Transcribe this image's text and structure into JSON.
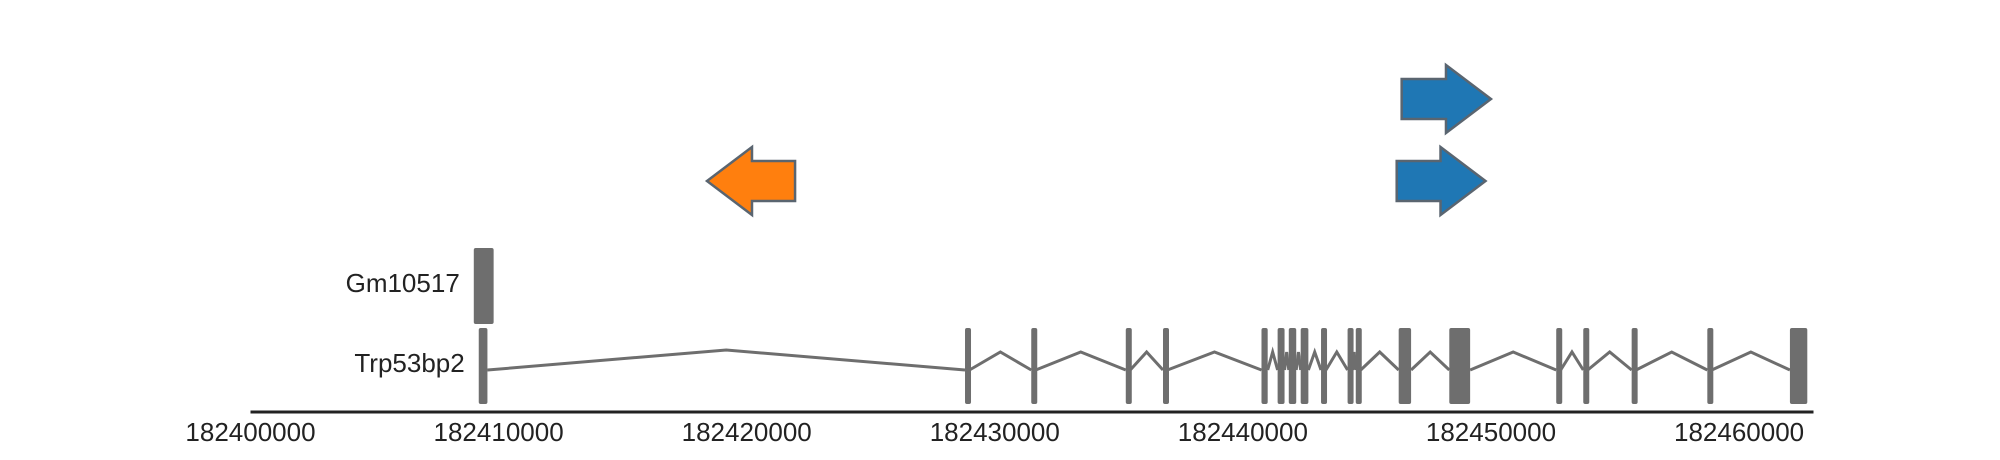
{
  "axis": {
    "min": 182400000,
    "max": 182463000,
    "tick_labels": [
      "182400000",
      "182410000",
      "182420000",
      "182430000",
      "182440000",
      "182450000",
      "182460000"
    ]
  },
  "colors": {
    "gene": "#6e6e6e",
    "axis": "#222222",
    "label": "#222222",
    "arrow_outline": "#5a6570",
    "arrow_minus_strand": "#ff7f0e",
    "arrow_plus_strand": "#1f77b4"
  },
  "genes": [
    {
      "name": "Gm10517",
      "exons": [
        [
          182409000,
          182409800
        ]
      ]
    },
    {
      "name": "Trp53bp2",
      "exons": [
        [
          182409200,
          182409550
        ],
        [
          182428800,
          182428980
        ],
        [
          182431470,
          182431650
        ],
        [
          182435280,
          182435460
        ],
        [
          182436780,
          182436960
        ],
        [
          182440750,
          182441000
        ],
        [
          182441400,
          182441680
        ],
        [
          182441850,
          182442150
        ],
        [
          182442330,
          182442640
        ],
        [
          182443150,
          182443350
        ],
        [
          182444220,
          182444420
        ],
        [
          182444550,
          182444750
        ],
        [
          182446280,
          182446780
        ],
        [
          182448320,
          182449160
        ],
        [
          182452630,
          182452810
        ],
        [
          182453720,
          182453900
        ],
        [
          182455670,
          182455850
        ],
        [
          182458720,
          182458900
        ],
        [
          182462050,
          182462750
        ]
      ]
    }
  ],
  "arrows": [
    {
      "name": "minus-strand-arrow",
      "strand": "-",
      "start": 182418400,
      "end": 182421950,
      "color": "#ff7f0e"
    },
    {
      "name": "plus-strand-arrow-upper",
      "strand": "+",
      "start": 182446400,
      "end": 182450000,
      "color": "#1f77b4"
    },
    {
      "name": "plus-strand-arrow-lower",
      "strand": "+",
      "start": 182446200,
      "end": 182449780,
      "color": "#1f77b4"
    }
  ]
}
